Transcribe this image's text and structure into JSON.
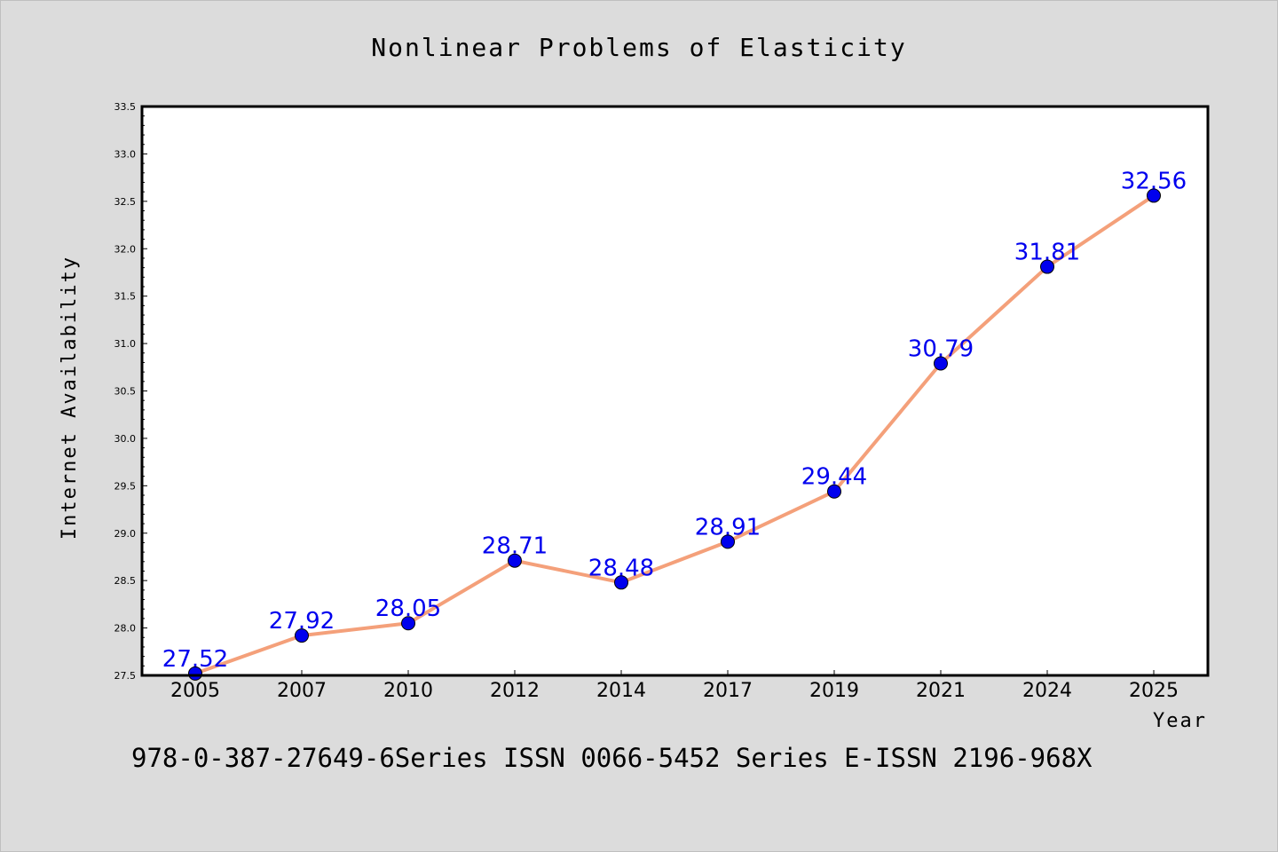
{
  "chart_data": {
    "type": "line",
    "title": "Nonlinear Problems of Elasticity",
    "xlabel": "Year",
    "ylabel": "Internet Availability",
    "categories": [
      "2005",
      "2007",
      "2010",
      "2012",
      "2014",
      "2017",
      "2019",
      "2021",
      "2024",
      "2025"
    ],
    "series": [
      {
        "values": [
          27.52,
          27.92,
          28.05,
          28.71,
          28.48,
          28.91,
          29.44,
          30.79,
          31.81,
          32.56
        ],
        "line_color": "#f4a07a",
        "marker_color": "#0000ee",
        "label_color": "#0000ee"
      }
    ],
    "data_labels": [
      "27.52",
      "27.92",
      "28.05",
      "28.71",
      "28.48",
      "28.91",
      "29.44",
      "30.79",
      "31.81",
      "32.56"
    ],
    "ylim": [
      27.5,
      33.5
    ],
    "yticks": [
      27.5,
      28.0,
      28.5,
      29.0,
      29.5,
      30.0,
      30.5,
      31.0,
      31.5,
      32.0,
      32.5,
      33.0,
      33.5
    ],
    "ytick_labels": [
      "27.5",
      "28.0",
      "28.5",
      "29.0",
      "29.5",
      "30.0",
      "30.5",
      "31.0",
      "31.5",
      "32.0",
      "32.5",
      "33.0",
      "33.5"
    ],
    "grid": false,
    "legend": "none"
  },
  "footer": {
    "text": "978-0-387-27649-6Series ISSN 0066-5452 Series E-ISSN 2196-968X"
  },
  "colors": {
    "background": "#dcdcdc",
    "plot_background": "#ffffff",
    "line": "#f4a07a",
    "marker": "#0000ee"
  }
}
